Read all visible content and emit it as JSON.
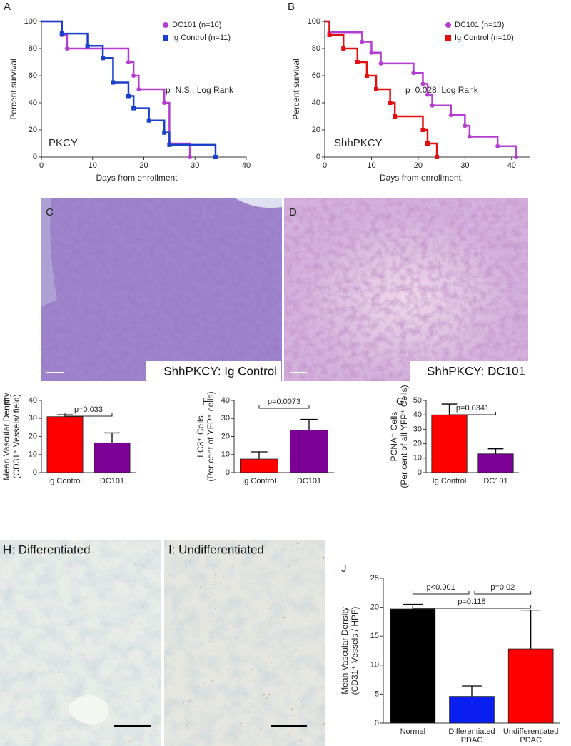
{
  "chart_data": [
    {
      "type": "survival",
      "panel": "A",
      "ylabel": "Percent survival",
      "xlabel": "Days from enrollment",
      "annotation": "p=N.S., Log Rank",
      "inset_label": "PKCY",
      "xlim": [
        0,
        40
      ],
      "ylim": [
        0,
        100
      ],
      "xticks": [
        0,
        10,
        20,
        30,
        40
      ],
      "yticks": [
        0,
        20,
        40,
        60,
        80,
        100
      ],
      "series": [
        {
          "name": "DC101 (n=10)",
          "color": "#b43cd2",
          "x": [
            0,
            4,
            5,
            17,
            18,
            19,
            24,
            25,
            29
          ],
          "values": [
            100,
            90,
            80,
            70,
            60,
            50,
            40,
            10,
            0
          ]
        },
        {
          "name": "Ig Control (n=11)",
          "color": "#1a3fc8",
          "x": [
            0,
            4,
            9,
            12,
            14,
            17,
            18,
            21,
            24,
            25,
            34
          ],
          "values": [
            100,
            91,
            82,
            73,
            55,
            45,
            36,
            27,
            18,
            9,
            0
          ]
        }
      ]
    },
    {
      "type": "survival",
      "panel": "B",
      "ylabel": "Percent survival",
      "xlabel": "Days from enrollment",
      "annotation": "p=0.028, Log Rank",
      "inset_label": "ShhPKCY",
      "xlim": [
        0,
        44
      ],
      "ylim": [
        0,
        100
      ],
      "xticks": [
        0,
        10,
        20,
        30,
        40
      ],
      "yticks": [
        0,
        20,
        40,
        60,
        80,
        100
      ],
      "series": [
        {
          "name": "DC101 (n=13)",
          "color": "#b43cd2",
          "x": [
            0,
            1,
            8,
            10,
            12,
            19,
            21,
            22,
            23,
            27,
            30,
            31,
            37,
            41
          ],
          "values": [
            100,
            92,
            85,
            77,
            69,
            62,
            54,
            46,
            38,
            31,
            23,
            15,
            8,
            0
          ]
        },
        {
          "name": "Ig Control (n=10)",
          "color": "#e01010",
          "x": [
            0,
            1,
            4,
            7,
            9,
            11,
            14,
            15,
            21,
            22,
            24
          ],
          "values": [
            100,
            90,
            80,
            70,
            60,
            50,
            40,
            30,
            20,
            10,
            0
          ]
        }
      ]
    },
    {
      "type": "bar",
      "panel": "E",
      "ylabel": [
        "Mean Vascular Density",
        "(CD31⁺ Vessels/ field)"
      ],
      "categories": [
        [
          "Ig Control"
        ],
        [
          "DC101"
        ]
      ],
      "values": [
        31,
        16.5
      ],
      "errors": [
        1,
        5.5
      ],
      "colors": [
        "#ff0000",
        "#7a0096"
      ],
      "ylim": [
        0,
        40
      ],
      "yticks": [
        0,
        10,
        20,
        30,
        40
      ],
      "annotations": [
        "p=0.033"
      ]
    },
    {
      "type": "bar",
      "panel": "F",
      "ylabel": [
        "LC3⁺ Cells",
        "(Per cent of YFP⁺ cells)"
      ],
      "categories": [
        [
          "Ig Control"
        ],
        [
          "DC101"
        ]
      ],
      "values": [
        7.5,
        23.5
      ],
      "errors": [
        4,
        6
      ],
      "colors": [
        "#ff0000",
        "#7a0096"
      ],
      "ylim": [
        0,
        40
      ],
      "yticks": [
        0,
        10,
        20,
        30,
        40
      ],
      "annotations": [
        "p=0.0073"
      ]
    },
    {
      "type": "bar",
      "panel": "G",
      "ylabel": [
        "PCNA⁺ Cells",
        "(Per cent of all YFP⁺ Cells)"
      ],
      "categories": [
        [
          "Ig Control"
        ],
        [
          "DC101"
        ]
      ],
      "values": [
        40,
        13
      ],
      "errors": [
        7.5,
        3.5
      ],
      "colors": [
        "#ff0000",
        "#7a0096"
      ],
      "ylim": [
        0,
        50
      ],
      "yticks": [
        0,
        10,
        20,
        30,
        40,
        50
      ],
      "annotations": [
        "p=0.0341"
      ]
    },
    {
      "type": "bar",
      "panel": "J",
      "ylabel": [
        "Mean Vascular Density",
        "(CD31⁺ Vessels / HPF)"
      ],
      "categories": [
        [
          "Normal"
        ],
        [
          "Differentiated",
          "PDAC"
        ],
        [
          "Undifferentiated",
          "PDAC"
        ]
      ],
      "values": [
        19.7,
        4.6,
        12.8
      ],
      "errors": [
        0.8,
        1.8,
        6.7
      ],
      "colors": [
        "#000000",
        "#0a1ef0",
        "#ff0000"
      ],
      "ylim": [
        0,
        25
      ],
      "yticks": [
        0,
        5,
        10,
        15,
        20,
        25
      ],
      "annotations": [
        "p<0.001",
        "p=0.02",
        "p=0.118"
      ]
    }
  ],
  "images": [
    {
      "panel": "C",
      "caption": "ShhPKCY: Ig Control"
    },
    {
      "panel": "D",
      "caption": "ShhPKCY: DC101"
    },
    {
      "caption": "H: Differentiated"
    },
    {
      "caption": "I: Undifferentiated"
    }
  ]
}
